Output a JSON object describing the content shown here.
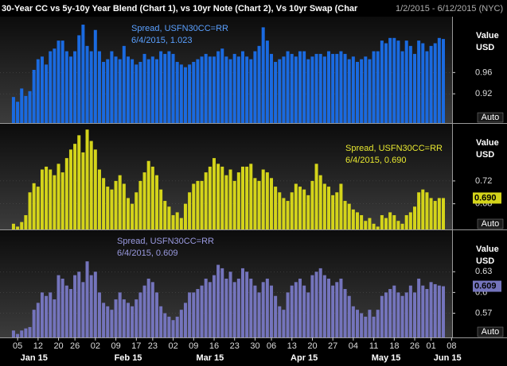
{
  "header": {
    "title": "30-Year CC vs 5y-10y Year Blend (Chart 1), vs 10yr Note (Chart 2), Vs 10yr Swap (Char",
    "date_range": "1/2/2015 - 6/12/2015 (NYC)"
  },
  "chart_data": [
    {
      "type": "bar",
      "annotation": [
        "Spread, USFN30CC=RR",
        "6/4/2015, 1.023"
      ],
      "ylabel": [
        "Value",
        "USD"
      ],
      "auto_button": "Auto",
      "series": [
        {
          "name": "USFN30CC=RR",
          "color": "#1a6ae0",
          "values": [
            0.914,
            0.905,
            0.93,
            0.916,
            0.925,
            0.965,
            0.985,
            0.99,
            0.975,
            1.0,
            1.005,
            1.02,
            1.02,
            1.0,
            0.99,
            1.0,
            1.03,
            1.05,
            1.01,
            1.0,
            1.04,
            1.0,
            0.98,
            0.985,
            1.0,
            0.99,
            0.985,
            1.01,
            0.99,
            0.985,
            0.975,
            0.98,
            0.995,
            0.985,
            0.99,
            0.985,
            1.0,
            0.995,
            1.0,
            0.995,
            0.98,
            0.975,
            0.97,
            0.975,
            0.98,
            0.985,
            0.99,
            0.995,
            0.99,
            0.99,
            1.0,
            1.005,
            0.99,
            0.985,
            0.995,
            0.99,
            1.0,
            0.99,
            0.985,
            1.0,
            1.01,
            1.045,
            1.02,
            0.995,
            0.98,
            0.985,
            0.99,
            1.0,
            0.995,
            0.99,
            1.0,
            1.0,
            0.985,
            0.99,
            0.995,
            0.995,
            0.99,
            1.0,
            0.995,
            0.995,
            1.0,
            0.995,
            0.985,
            0.99,
            0.98,
            0.985,
            0.99,
            0.985,
            1.0,
            1.0,
            1.02,
            1.015,
            1.025,
            1.025,
            1.02,
            1.0,
            1.02,
            1.01,
            0.995,
            1.02,
            1.015,
            1.0,
            1.01,
            1.015,
            1.025,
            1.023,
            null,
            null
          ]
        }
      ],
      "ylim": [
        0.865,
        1.065
      ],
      "yticks": [
        0.92,
        0.96
      ],
      "grid": true
    },
    {
      "type": "bar",
      "annotation": [
        "Spread, USFN30CC=RR",
        "6/4/2015, 0.690"
      ],
      "ylabel": [
        "Value",
        "USD"
      ],
      "auto_button": "Auto",
      "series": [
        {
          "name": "USFN30CC=RR",
          "color": "#d4d41a",
          "values": [
            0.645,
            0.64,
            0.648,
            0.66,
            0.7,
            0.716,
            0.71,
            0.74,
            0.745,
            0.74,
            0.73,
            0.75,
            0.735,
            0.76,
            0.775,
            0.785,
            0.8,
            0.77,
            0.81,
            0.79,
            0.775,
            0.74,
            0.725,
            0.71,
            0.705,
            0.72,
            0.73,
            0.715,
            0.69,
            0.68,
            0.7,
            0.72,
            0.735,
            0.755,
            0.745,
            0.73,
            0.705,
            0.685,
            0.675,
            0.66,
            0.665,
            0.655,
            0.68,
            0.7,
            0.715,
            0.72,
            0.72,
            0.735,
            0.745,
            0.76,
            0.75,
            0.745,
            0.73,
            0.74,
            0.72,
            0.735,
            0.745,
            0.745,
            0.75,
            0.725,
            0.72,
            0.74,
            0.735,
            0.725,
            0.71,
            0.7,
            0.69,
            0.685,
            0.7,
            0.715,
            0.71,
            0.705,
            0.695,
            0.72,
            0.75,
            0.73,
            0.715,
            0.71,
            0.695,
            0.7,
            0.715,
            0.685,
            0.68,
            0.67,
            0.665,
            0.66,
            0.65,
            0.655,
            0.645,
            0.64,
            0.66,
            0.655,
            0.665,
            0.66,
            0.65,
            0.645,
            0.66,
            0.665,
            0.675,
            0.7,
            0.705,
            0.7,
            0.69,
            0.685,
            0.69,
            0.69,
            null,
            null
          ],
          "value_labels": [
            null,
            null,
            null,
            null,
            null,
            null,
            null,
            null,
            null,
            null,
            null,
            null,
            null,
            null,
            null,
            null,
            null,
            null,
            null,
            null,
            null,
            null,
            null,
            null,
            null,
            null,
            null,
            null,
            null,
            null,
            null,
            null,
            null,
            null,
            null,
            null,
            null,
            null,
            null,
            null,
            null,
            null,
            null,
            null,
            null,
            null,
            null,
            null,
            null,
            null,
            null,
            null,
            null,
            null,
            null,
            null,
            null,
            null,
            null,
            null,
            null,
            null,
            null,
            null,
            null,
            null,
            null,
            null,
            null,
            null,
            null,
            null,
            null,
            null,
            null,
            null,
            null,
            null,
            null,
            null,
            null,
            null,
            null,
            null,
            null,
            null,
            null,
            null,
            null,
            null,
            null,
            null,
            null,
            null,
            null,
            null,
            null,
            null,
            null,
            null,
            null,
            null,
            null,
            null,
            null,
            "0.690",
            null,
            null
          ]
        }
      ],
      "ylim": [
        0.635,
        0.82
      ],
      "yticks": [
        0.68,
        0.72
      ],
      "grid": true
    },
    {
      "type": "bar",
      "annotation": [
        "Spread, USFN30CC=RR",
        "6/4/2015, 0.609"
      ],
      "ylabel": [
        "Value",
        "USD"
      ],
      "auto_button": "Auto",
      "categories": [
        null,
        "05",
        null,
        null,
        null,
        null,
        "12",
        null,
        null,
        null,
        null,
        "20",
        null,
        null,
        null,
        "26",
        null,
        null,
        null,
        null,
        "02",
        null,
        null,
        null,
        null,
        "09",
        null,
        null,
        null,
        null,
        "17",
        null,
        null,
        null,
        "23",
        null,
        null,
        null,
        null,
        "02",
        null,
        null,
        null,
        null,
        "09",
        null,
        null,
        null,
        null,
        "16",
        null,
        null,
        null,
        null,
        "23",
        null,
        null,
        null,
        null,
        "30",
        null,
        null,
        null,
        "06",
        null,
        null,
        null,
        null,
        "13",
        null,
        null,
        null,
        null,
        "20",
        null,
        null,
        null,
        null,
        "27",
        null,
        null,
        null,
        null,
        "04",
        null,
        null,
        null,
        null,
        "11",
        null,
        null,
        null,
        null,
        "18",
        null,
        null,
        null,
        null,
        "26",
        null,
        null,
        null,
        "01",
        null,
        null,
        null,
        null,
        "08"
      ],
      "month_labels": [
        null,
        null,
        null,
        null,
        null,
        "Jan 15",
        null,
        null,
        null,
        null,
        null,
        null,
        null,
        null,
        null,
        null,
        null,
        null,
        null,
        null,
        null,
        null,
        null,
        null,
        null,
        null,
        null,
        null,
        "Feb 15",
        null,
        null,
        null,
        null,
        null,
        null,
        null,
        null,
        null,
        null,
        null,
        null,
        null,
        null,
        null,
        null,
        null,
        null,
        null,
        "Mar 15",
        null,
        null,
        null,
        null,
        null,
        null,
        null,
        null,
        null,
        null,
        null,
        null,
        null,
        null,
        null,
        null,
        null,
        null,
        null,
        null,
        null,
        null,
        "Apr 15",
        null,
        null,
        null,
        null,
        null,
        null,
        null,
        null,
        null,
        null,
        null,
        null,
        null,
        null,
        null,
        null,
        null,
        null,
        null,
        "May 15",
        null,
        null,
        null,
        null,
        null,
        null,
        null,
        null,
        null,
        null,
        null,
        null,
        null,
        null,
        "Jun 15",
        null
      ],
      "series": [
        {
          "name": "USFN30CC=RR",
          "color": "#7474bc",
          "values": [
            0.545,
            0.54,
            0.545,
            0.548,
            0.55,
            0.575,
            0.585,
            0.6,
            0.595,
            0.6,
            0.59,
            0.625,
            0.62,
            0.61,
            0.605,
            0.625,
            0.63,
            0.615,
            0.645,
            0.625,
            0.63,
            0.6,
            0.585,
            0.58,
            0.575,
            0.59,
            0.6,
            0.59,
            0.585,
            0.58,
            0.59,
            0.6,
            0.61,
            0.62,
            0.615,
            0.6,
            0.58,
            0.57,
            0.565,
            0.56,
            0.565,
            0.575,
            0.585,
            0.6,
            0.6,
            0.605,
            0.61,
            0.62,
            0.615,
            0.625,
            0.64,
            0.635,
            0.62,
            0.63,
            0.615,
            0.62,
            0.635,
            0.63,
            0.62,
            0.61,
            0.6,
            0.615,
            0.62,
            0.61,
            0.595,
            0.58,
            0.575,
            0.6,
            0.61,
            0.615,
            0.62,
            0.61,
            0.6,
            0.625,
            0.63,
            0.635,
            0.625,
            0.62,
            0.61,
            0.615,
            0.62,
            0.605,
            0.595,
            0.58,
            0.575,
            0.57,
            0.565,
            0.575,
            0.565,
            0.575,
            0.595,
            0.6,
            0.605,
            0.61,
            0.6,
            0.595,
            0.6,
            0.61,
            0.6,
            0.62,
            0.61,
            0.605,
            0.615,
            0.612,
            0.61,
            0.609,
            null,
            null
          ],
          "value_labels": [
            null,
            null,
            null,
            null,
            null,
            null,
            null,
            null,
            null,
            null,
            null,
            null,
            null,
            null,
            null,
            null,
            null,
            null,
            null,
            null,
            null,
            null,
            null,
            null,
            null,
            null,
            null,
            null,
            null,
            null,
            null,
            null,
            null,
            null,
            null,
            null,
            null,
            null,
            null,
            null,
            null,
            null,
            null,
            null,
            null,
            null,
            null,
            null,
            null,
            null,
            null,
            null,
            null,
            null,
            null,
            null,
            null,
            null,
            null,
            null,
            null,
            null,
            null,
            null,
            null,
            null,
            null,
            null,
            null,
            null,
            null,
            null,
            null,
            null,
            null,
            null,
            null,
            null,
            null,
            null,
            null,
            null,
            null,
            null,
            null,
            null,
            null,
            null,
            null,
            null,
            null,
            null,
            null,
            null,
            null,
            null,
            null,
            null,
            null,
            null,
            null,
            null,
            null,
            null,
            null,
            "0.609",
            null,
            null
          ]
        }
      ],
      "ylim": [
        0.535,
        0.69
      ],
      "yticks": [
        0.57,
        0.6,
        0.63
      ],
      "grid": true
    }
  ]
}
